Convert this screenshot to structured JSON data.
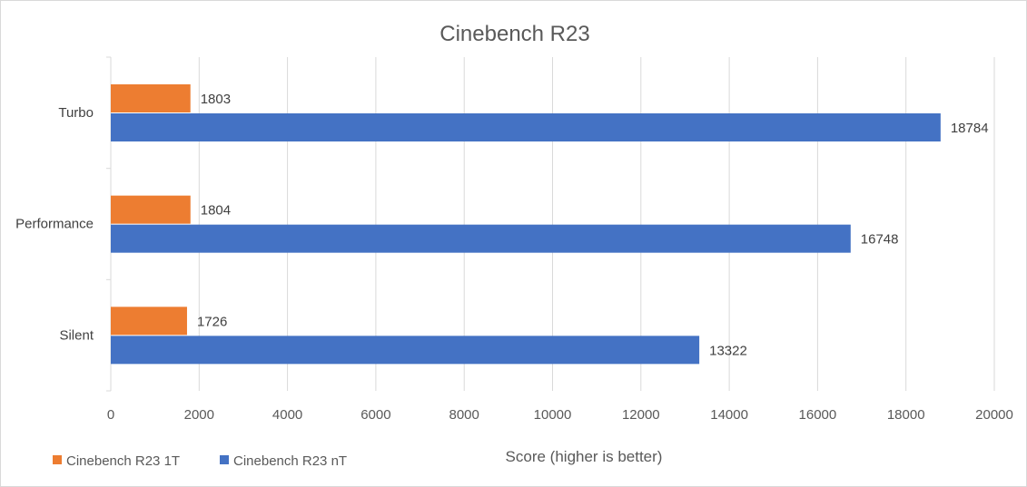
{
  "chart_data": {
    "type": "bar",
    "orientation": "horizontal",
    "title": "Cinebench R23",
    "xlabel": "Score (higher is better)",
    "ylabel": "",
    "categories": [
      "Turbo",
      "Performance",
      "Silent"
    ],
    "series": [
      {
        "name": "Cinebench R23 1T",
        "color": "#ED7D31",
        "values": [
          1803,
          1804,
          1726
        ]
      },
      {
        "name": "Cinebench R23 nT",
        "color": "#4472C4",
        "values": [
          18784,
          16748,
          13322
        ]
      }
    ],
    "xlim": [
      0,
      20000
    ],
    "x_ticks": [
      "0",
      "2000",
      "4000",
      "6000",
      "8000",
      "10000",
      "12000",
      "14000",
      "16000",
      "18000",
      "20000"
    ],
    "grid": "vertical",
    "legend_position": "bottom-left",
    "data_labels": true
  }
}
